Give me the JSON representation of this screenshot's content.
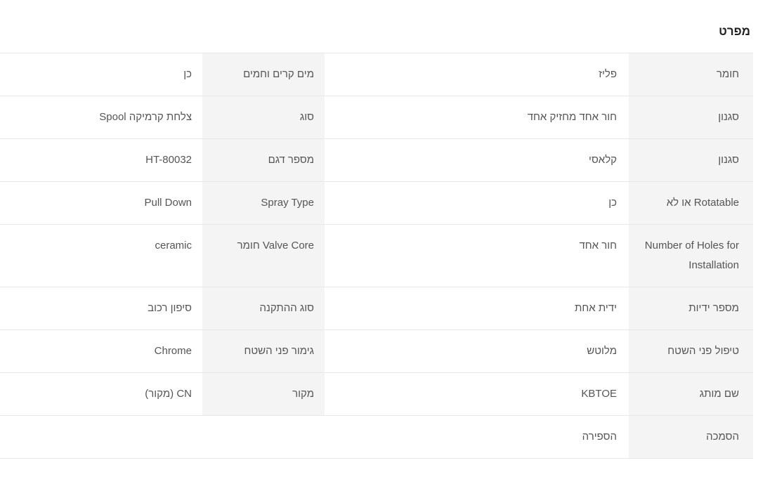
{
  "section": {
    "title": "מפרט"
  },
  "colors": {
    "label_bg": "#f4f4f4",
    "border": "#e8e8e8",
    "text": "#555555",
    "title": "#222222"
  },
  "spec_table": {
    "rows": [
      {
        "label_a": "חומר",
        "value_a": "פליז",
        "label_b": "מים קרים וחמים",
        "value_b": "כן"
      },
      {
        "label_a": "סגנון",
        "value_a": "חור אחד מחזיק אחד",
        "label_b": "סוג",
        "value_b": "צלחת קרמיקה Spool"
      },
      {
        "label_a": "סגנון",
        "value_a": "קלאסי",
        "label_b": "מספר דגם",
        "value_b": "HT-80032"
      },
      {
        "label_a": "Rotatable או לא",
        "value_a": "כן",
        "label_b": "Spray Type",
        "value_b": "Pull Down"
      },
      {
        "label_a": "Number of Holes for Installation",
        "value_a": "חור אחד",
        "label_b": "Valve Core חומר",
        "value_b": "ceramic"
      },
      {
        "label_a": "מספר ידיות",
        "value_a": "ידית אחת",
        "label_b": "סוג ההתקנה",
        "value_b": "סיפון רכוב"
      },
      {
        "label_a": "טיפול פני השטח",
        "value_a": "מלוטש",
        "label_b": "גימור פני השטח",
        "value_b": "Chrome"
      },
      {
        "label_a": "שם מותג",
        "value_a": "KBTOE",
        "label_b": "מקור",
        "value_b": "CN (מקור)"
      },
      {
        "label_a": "הסמכה",
        "value_a": "הספירה",
        "label_b": "",
        "value_b": ""
      }
    ]
  }
}
